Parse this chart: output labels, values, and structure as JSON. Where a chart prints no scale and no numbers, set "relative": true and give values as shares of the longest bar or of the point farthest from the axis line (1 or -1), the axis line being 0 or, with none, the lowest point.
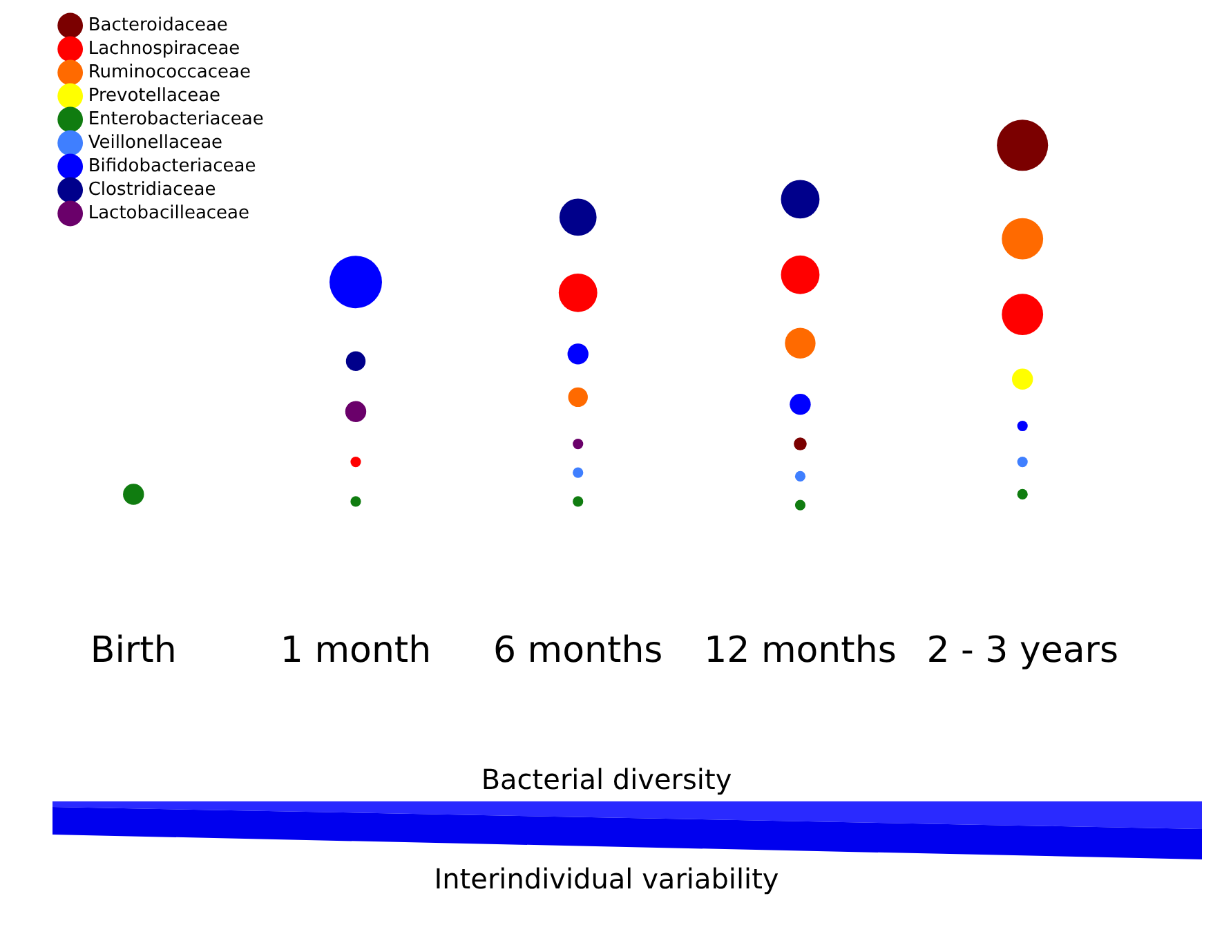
{
  "chart_data": {
    "type": "bubble",
    "relative": true,
    "legend": "top left",
    "grid": false,
    "categories": [
      "Birth",
      "1 month",
      "6 months",
      "12 months",
      "2 - 3 years"
    ],
    "series": [
      {
        "name": "Bacteroidaceae",
        "color": "#7b0000",
        "values": [
          null,
          null,
          null,
          0.17,
          1
        ],
        "sizes": [
          null,
          null,
          null,
          0.06,
          0.95
        ]
      },
      {
        "name": "Lachnospiraceae",
        "color": "#ff0000",
        "values": [
          null,
          0.12,
          0.59,
          0.64,
          0.53
        ],
        "sizes": [
          null,
          0.04,
          0.54,
          0.54,
          0.62
        ]
      },
      {
        "name": "Ruminococcaceae",
        "color": "#ff6a00",
        "values": [
          null,
          null,
          0.3,
          0.45,
          0.74
        ],
        "sizes": [
          null,
          null,
          0.14,
          0.34,
          0.62
        ]
      },
      {
        "name": "Prevotellaceae",
        "color": "#ffff00",
        "values": [
          null,
          null,
          null,
          null,
          0.35
        ],
        "sizes": [
          null,
          null,
          null,
          null,
          0.16
        ]
      },
      {
        "name": "Enterobacteriaceae",
        "color": "#107c10",
        "values": [
          0.03,
          0.01,
          0.01,
          0,
          0.03
        ],
        "sizes": [
          0.16,
          0.04,
          0.04,
          0.04,
          0.04
        ]
      },
      {
        "name": "Veillonellaceae",
        "color": "#3f7fff",
        "values": [
          null,
          null,
          0.09,
          0.08,
          0.12
        ],
        "sizes": [
          null,
          null,
          0.04,
          0.04,
          0.04
        ]
      },
      {
        "name": "Bifidobacteriaceae",
        "color": "#0000ff",
        "values": [
          null,
          0.62,
          0.42,
          0.28,
          0.22
        ],
        "sizes": [
          null,
          1,
          0.16,
          0.16,
          0.04
        ]
      },
      {
        "name": "Clostridiaceae",
        "color": "#00008b",
        "values": [
          null,
          0.4,
          0.8,
          0.85,
          null
        ],
        "sizes": [
          null,
          0.14,
          0.5,
          0.54,
          null
        ]
      },
      {
        "name": "Lactobacilleaceae",
        "color": "#6a006a",
        "values": [
          null,
          0.26,
          0.17,
          null,
          null
        ],
        "sizes": [
          null,
          0.16,
          0.04,
          null,
          null
        ]
      }
    ],
    "annotations": [
      "Bacterial diversity",
      "Interindividual variability"
    ]
  }
}
